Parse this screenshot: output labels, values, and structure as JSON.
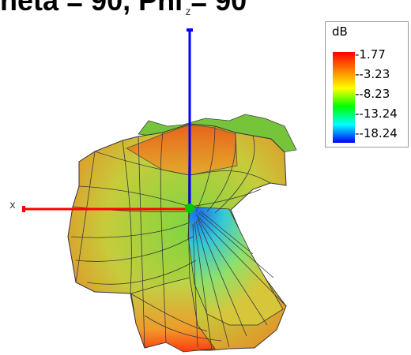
{
  "title": "heta = 90, Phi = 90",
  "axes": {
    "z_label": "z",
    "x_label": "x"
  },
  "legend": {
    "unit": "dB",
    "ticks": [
      "1.77",
      "-3.23",
      "-8.23",
      "-13.24",
      "-18.24"
    ],
    "gradient": [
      "#ff0000",
      "#ff8000",
      "#ffff00",
      "#00ff00",
      "#00ffff",
      "#0000ff"
    ]
  },
  "colors": {
    "z_axis": "#0000ff",
    "x_axis": "#ff0000",
    "origin": "#00c800"
  }
}
